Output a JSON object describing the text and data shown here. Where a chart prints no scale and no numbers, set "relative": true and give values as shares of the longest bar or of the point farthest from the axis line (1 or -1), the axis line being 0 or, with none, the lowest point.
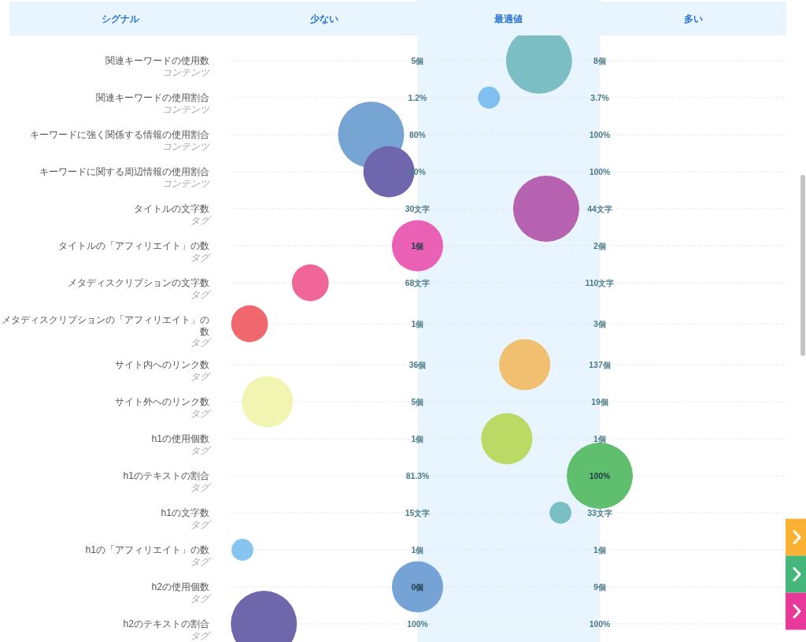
{
  "chart_data": {
    "type": "bubble",
    "orientation": "horizontal",
    "relative": true,
    "ylabel": "シグナル",
    "grid": "y",
    "tick_labels": "y",
    "categories": [
      null,
      "関連キーワードの使用数",
      "関連キーワードの使用割合",
      "キーワードに強く関係する情報の使用割合",
      "キーワードに関する周辺情報の使用割合",
      "タイトルの文字数",
      "タイトルの「アフィリエイト」の数",
      "メタディスクリプションの文字数",
      "メタディスクリプションの「アフィリエイト」の数",
      "サイト内へのリンク数",
      "サイト外へのリンク数",
      "h1の使用個数",
      "h1のテキストの割合",
      "h1の文字数",
      "h1の「アフィリエイト」の数",
      "h2の使用個数",
      "h2のテキストの割合"
    ],
    "values": [
      null,
      0.83,
      0.69,
      0.36,
      0.41,
      0.85,
      0.49,
      0.19,
      0.02,
      0.79,
      0.07,
      0.74,
      1,
      0.89,
      0,
      0.49,
      0.06
    ],
    "sizes": [
      null,
      1,
      0.11,
      1,
      0.6,
      1,
      0.6,
      0.31,
      0.31,
      0.6,
      0.6,
      0.6,
      1,
      0.11,
      0.11,
      0.6,
      1
    ],
    "colors": [
      null,
      "#7bbec4",
      "#7fc0f0",
      "#77a5d3",
      "#7066ad",
      "#b762b0",
      "#ea60b4",
      "#f06699",
      "#f0686d",
      "#f0c070",
      "#f2f4b2",
      "#bbd965",
      "#5fbf6f",
      "#7abfc4",
      "#86c5f2",
      "#75a3d5",
      "#7066ab"
    ],
    "bands": [
      {
        "axis": "x",
        "from": 0.49,
        "to": 1.0,
        "label": "最適値",
        "color": "#e8f5fe"
      }
    ],
    "annotations": [
      "少ない",
      "多い",
      "コンテンツ",
      "5個",
      "8個",
      "コンテンツ",
      "1.2%",
      "3.7%",
      "コンテンツ",
      "80%",
      "100%",
      "コンテンツ",
      "50%",
      "100%",
      "タグ",
      "30文字",
      "44文字",
      "タグ",
      "1個",
      "2個",
      "タグ",
      "68文字",
      "110文字",
      "タグ",
      "1個",
      "3個",
      "タグ",
      "36個",
      "137個",
      "タグ",
      "5個",
      "19個",
      "タグ",
      "1個",
      "1個",
      "タグ",
      "81.3%",
      "100%",
      "タグ",
      "15文字",
      "33文字",
      "タグ",
      "1個",
      "1個",
      "タグ",
      "0個",
      "9個",
      "タグ",
      "100%",
      "100%"
    ]
  }
}
